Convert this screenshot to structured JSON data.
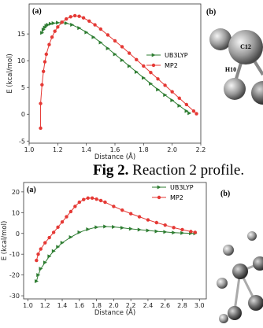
{
  "chart_data": [
    {
      "type": "line",
      "panel_label": "(a)",
      "ylabel": "E (kcal/mol)",
      "xlabel": "Distance (Å)",
      "xlim": [
        1.0,
        2.2
      ],
      "xticks": [
        {
          "value": 1.0,
          "label": "1.0"
        },
        1.2,
        1.4,
        1.6,
        1.8,
        {
          "value": 2.0,
          "label": "2.0"
        },
        2.2
      ],
      "ylim": [
        -5.4,
        20.6
      ],
      "yticks": [
        -5,
        0,
        5,
        10,
        15
      ],
      "legend": "right",
      "series": [
        {
          "name": "UB3LYP",
          "color": "#2e7d32",
          "marker": "triangle",
          "x": [
            1.09,
            1.1,
            1.11,
            1.12,
            1.13,
            1.15,
            1.17,
            1.2,
            1.23,
            1.26,
            1.3,
            1.35,
            1.4,
            1.45,
            1.5,
            1.55,
            1.6,
            1.65,
            1.7,
            1.75,
            1.8,
            1.85,
            1.9,
            1.95,
            2.0,
            2.05,
            2.1,
            2.12
          ],
          "values": [
            15.2,
            15.8,
            16.2,
            16.5,
            16.7,
            16.9,
            17.0,
            17.1,
            17.1,
            17.0,
            16.7,
            16.1,
            15.3,
            14.4,
            13.4,
            12.3,
            11.2,
            10.1,
            9.0,
            7.9,
            6.8,
            5.7,
            4.6,
            3.6,
            2.6,
            1.6,
            0.6,
            0.2
          ]
        },
        {
          "name": "MP2",
          "color": "#e53935",
          "marker": "circle",
          "x": [
            1.08,
            1.08,
            1.09,
            1.1,
            1.11,
            1.12,
            1.14,
            1.16,
            1.18,
            1.2,
            1.23,
            1.26,
            1.29,
            1.32,
            1.35,
            1.38,
            1.42,
            1.46,
            1.5,
            1.55,
            1.6,
            1.65,
            1.7,
            1.75,
            1.8,
            1.85,
            1.9,
            1.95,
            2.0,
            2.05,
            2.1,
            2.15,
            2.17
          ],
          "values": [
            -2.6,
            2.0,
            5.5,
            8.0,
            9.8,
            11.2,
            13.0,
            14.4,
            15.5,
            16.3,
            17.2,
            17.8,
            18.2,
            18.4,
            18.3,
            18.0,
            17.4,
            16.7,
            15.9,
            14.8,
            13.7,
            12.6,
            11.4,
            10.2,
            9.0,
            7.8,
            6.6,
            5.4,
            4.2,
            3.0,
            1.8,
            0.6,
            0.1
          ]
        }
      ]
    },
    {
      "type": "line",
      "panel_label": "(a)",
      "ylabel": "E (kcal/mol)",
      "xlabel": "Distance (Å)",
      "xlim": [
        0.95,
        3.08
      ],
      "xticks": [
        {
          "value": 1.0,
          "label": "1.0"
        },
        1.2,
        1.4,
        1.6,
        1.8,
        {
          "value": 2.0,
          "label": "2.0"
        },
        2.2,
        2.4,
        2.6,
        2.8,
        {
          "value": 3.0,
          "label": "3.0"
        }
      ],
      "ylim": [
        -31.5,
        24.5
      ],
      "yticks": [
        -30,
        -20,
        -10,
        0,
        10,
        20
      ],
      "legend": "upper right",
      "series": [
        {
          "name": "UB3LYP",
          "color": "#2e7d32",
          "marker": "triangle",
          "x": [
            1.1,
            1.12,
            1.15,
            1.2,
            1.25,
            1.3,
            1.35,
            1.4,
            1.5,
            1.6,
            1.7,
            1.8,
            1.9,
            2.0,
            2.1,
            2.2,
            2.3,
            2.4,
            2.5,
            2.6,
            2.7,
            2.8,
            2.9,
            2.95
          ],
          "values": [
            -23,
            -20,
            -17,
            -14,
            -11,
            -8.5,
            -6.5,
            -4.5,
            -1.8,
            0.5,
            2,
            3,
            3.3,
            3.1,
            2.7,
            2.2,
            1.8,
            1.4,
            1.0,
            0.7,
            0.4,
            0.2,
            0.05,
            0
          ]
        },
        {
          "name": "MP2",
          "color": "#e53935",
          "marker": "circle",
          "x": [
            1.1,
            1.12,
            1.15,
            1.2,
            1.25,
            1.3,
            1.35,
            1.4,
            1.45,
            1.5,
            1.55,
            1.6,
            1.65,
            1.7,
            1.75,
            1.8,
            1.85,
            1.9,
            2.0,
            2.1,
            2.2,
            2.3,
            2.4,
            2.5,
            2.6,
            2.7,
            2.8,
            2.9,
            2.95
          ],
          "values": [
            -13,
            -10,
            -7.5,
            -4.5,
            -2,
            0.5,
            3,
            5.5,
            8,
            10.5,
            13,
            15,
            16.3,
            17,
            17,
            16.5,
            15.8,
            15,
            13,
            11.2,
            9.5,
            8,
            6.5,
            5.2,
            4,
            2.8,
            1.8,
            0.9,
            0.5
          ]
        }
      ]
    }
  ],
  "caption": {
    "label": "Fig 2.",
    "text": "Reaction 2 profile."
  },
  "molecules": [
    {
      "panel_label": "(b)",
      "atoms": [
        "C12",
        "H10"
      ]
    },
    {
      "panel_label": "(b)"
    }
  ]
}
